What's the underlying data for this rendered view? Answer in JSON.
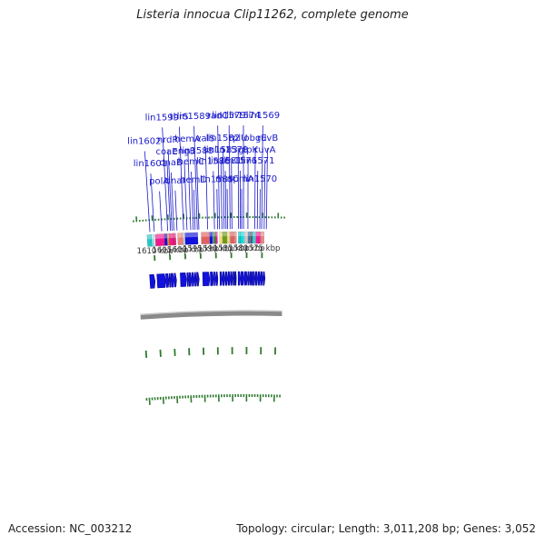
{
  "title": "Listeria innocua Clip11262, complete genome",
  "footer": {
    "accession": "Accession: NC_003212",
    "topology": "Topology: circular; Length: 3,011,208 bp; Genes: 3,052"
  },
  "colors": {
    "forward_cds": "#1212dd",
    "label": "#1a1acc",
    "tick": "#2f7a2f",
    "backbone": "#8a8a8a",
    "kbp_text": "#333333"
  },
  "scale_marks": [
    {
      "text": "1610 kbp",
      "kbp": 1610
    },
    {
      "text": "1605 kbp",
      "kbp": 1605
    },
    {
      "text": "1600 kbp",
      "kbp": 1600
    },
    {
      "text": "1595 kbp",
      "kbp": 1595
    },
    {
      "text": "1590 kbp",
      "kbp": 1590
    },
    {
      "text": "1585 kbp",
      "kbp": 1585
    },
    {
      "text": "1580 kbp",
      "kbp": 1580
    },
    {
      "text": "1575 kbp",
      "kbp": 1575
    }
  ],
  "gene_labels": [
    {
      "text": "lin1602",
      "kbp": 1611.0
    },
    {
      "text": "lin1601",
      "kbp": 1609.6
    },
    {
      "text": "polA",
      "kbp": 1607.2
    },
    {
      "text": "lin1599",
      "kbp": 1605.3
    },
    {
      "text": "coaE",
      "kbp": 1604.4
    },
    {
      "text": "nrdR",
      "kbp": 1603.9
    },
    {
      "text": "dnaB",
      "kbp": 1603.3
    },
    {
      "text": "dnaI",
      "kbp": 1602.3
    },
    {
      "text": "thrS",
      "kbp": 1600.2
    },
    {
      "text": "engB",
      "kbp": 1599.1
    },
    {
      "text": "hemA",
      "kbp": 1597.9
    },
    {
      "text": "hemC",
      "kbp": 1597.1
    },
    {
      "text": "hemD",
      "kbp": 1596.5
    },
    {
      "text": "lin1589",
      "kbp": 1595.8
    },
    {
      "text": "lin1588",
      "kbp": 1595.3
    },
    {
      "text": "valS",
      "kbp": 1592.5
    },
    {
      "text": "lin1586",
      "kbp": 1590.3
    },
    {
      "text": "lin1585",
      "kbp": 1589.3
    },
    {
      "text": "radC",
      "kbp": 1588.7
    },
    {
      "text": "lin1583",
      "kbp": 1587.9
    },
    {
      "text": "lin1582",
      "kbp": 1587.2
    },
    {
      "text": "lin1581",
      "kbp": 1586.6
    },
    {
      "text": "minC",
      "kbp": 1586.1
    },
    {
      "text": "lin1579",
      "kbp": 1585.3
    },
    {
      "text": "lin1578",
      "kbp": 1584.7
    },
    {
      "text": "rplU",
      "kbp": 1582.6
    },
    {
      "text": "lin1576",
      "kbp": 1582.0
    },
    {
      "text": "rpmA",
      "kbp": 1581.6
    },
    {
      "text": "lin1574",
      "kbp": 1581.0
    },
    {
      "text": "glpK",
      "kbp": 1579.6
    },
    {
      "text": "obgE",
      "kbp": 1577.4
    },
    {
      "text": "lin1571",
      "kbp": 1576.6
    },
    {
      "text": "lin1570",
      "kbp": 1575.8
    },
    {
      "text": "lin1569",
      "kbp": 1575.2
    },
    {
      "text": "ruvA",
      "kbp": 1574.4
    },
    {
      "text": "ruvB",
      "kbp": 1573.7
    }
  ],
  "cog_features": [
    {
      "start": 1612.0,
      "end": 1610.6,
      "color": "#20c8c8"
    },
    {
      "start": 1610.6,
      "end": 1609.8,
      "color": "#8ee8e8"
    },
    {
      "start": 1609.4,
      "end": 1606.4,
      "color": "#ee1b8f"
    },
    {
      "start": 1606.4,
      "end": 1605.6,
      "color": "#1212dd"
    },
    {
      "start": 1605.5,
      "end": 1604.9,
      "color": "#f08c1e"
    },
    {
      "start": 1604.9,
      "end": 1603.6,
      "color": "#ee1b8f"
    },
    {
      "start": 1603.6,
      "end": 1602.8,
      "color": "#e02070"
    },
    {
      "start": 1602.2,
      "end": 1600.6,
      "color": "#ee8080"
    },
    {
      "start": 1600.6,
      "end": 1600.0,
      "color": "#c8c8c8"
    },
    {
      "start": 1599.8,
      "end": 1595.7,
      "color": "#1212dd"
    },
    {
      "start": 1594.6,
      "end": 1592.0,
      "color": "#e06060"
    },
    {
      "start": 1591.9,
      "end": 1590.9,
      "color": "#1212dd"
    },
    {
      "start": 1590.7,
      "end": 1590.0,
      "color": "#2e9b2e"
    },
    {
      "start": 1590.0,
      "end": 1589.4,
      "color": "#ee1b8f"
    },
    {
      "start": 1588.7,
      "end": 1587.8,
      "color": "#f0e070"
    },
    {
      "start": 1587.7,
      "end": 1586.4,
      "color": "#6a9b1a"
    },
    {
      "start": 1586.3,
      "end": 1585.5,
      "color": "#f0e070"
    },
    {
      "start": 1585.3,
      "end": 1584.1,
      "color": "#e06060"
    },
    {
      "start": 1584.0,
      "end": 1583.3,
      "color": "#ee8080"
    },
    {
      "start": 1582.7,
      "end": 1582.0,
      "color": "#20c8c8"
    },
    {
      "start": 1582.0,
      "end": 1580.9,
      "color": "#00e0e0"
    },
    {
      "start": 1580.7,
      "end": 1579.6,
      "color": "#c8c8c8"
    },
    {
      "start": 1579.5,
      "end": 1578.8,
      "color": "#3b6ea8"
    },
    {
      "start": 1578.7,
      "end": 1578.1,
      "color": "#606060"
    },
    {
      "start": 1578.0,
      "end": 1577.3,
      "color": "#00e8e8"
    },
    {
      "start": 1577.1,
      "end": 1575.6,
      "color": "#ee1b8f"
    },
    {
      "start": 1575.5,
      "end": 1574.4,
      "color": "#ee8080"
    }
  ],
  "forward_cds": [
    {
      "start": 1612.0,
      "end": 1610.3
    },
    {
      "start": 1609.6,
      "end": 1606.8
    },
    {
      "start": 1606.7,
      "end": 1605.7
    },
    {
      "start": 1605.6,
      "end": 1605.1
    },
    {
      "start": 1605.0,
      "end": 1604.0
    },
    {
      "start": 1603.9,
      "end": 1603.2
    },
    {
      "start": 1601.9,
      "end": 1599.9
    },
    {
      "start": 1599.7,
      "end": 1599.2
    },
    {
      "start": 1599.1,
      "end": 1598.2
    },
    {
      "start": 1598.1,
      "end": 1597.3
    },
    {
      "start": 1597.2,
      "end": 1596.6
    },
    {
      "start": 1596.5,
      "end": 1595.7
    },
    {
      "start": 1594.5,
      "end": 1592.2
    },
    {
      "start": 1592.0,
      "end": 1590.9
    },
    {
      "start": 1590.8,
      "end": 1590.1
    },
    {
      "start": 1590.0,
      "end": 1589.5
    },
    {
      "start": 1588.8,
      "end": 1588.0
    },
    {
      "start": 1587.9,
      "end": 1587.1
    },
    {
      "start": 1587.0,
      "end": 1586.2
    },
    {
      "start": 1586.1,
      "end": 1585.4
    },
    {
      "start": 1585.3,
      "end": 1584.6
    },
    {
      "start": 1584.5,
      "end": 1584.2
    },
    {
      "start": 1584.1,
      "end": 1583.8
    },
    {
      "start": 1583.7,
      "end": 1583.4
    },
    {
      "start": 1582.8,
      "end": 1582.0
    },
    {
      "start": 1581.9,
      "end": 1580.8
    },
    {
      "start": 1580.7,
      "end": 1579.7
    },
    {
      "start": 1579.6,
      "end": 1579.0
    },
    {
      "start": 1578.9,
      "end": 1578.5
    },
    {
      "start": 1578.4,
      "end": 1578.0
    },
    {
      "start": 1577.9,
      "end": 1577.2
    },
    {
      "start": 1577.1,
      "end": 1576.3
    },
    {
      "start": 1576.2,
      "end": 1575.5
    },
    {
      "start": 1575.4,
      "end": 1574.6
    },
    {
      "start": 1574.5,
      "end": 1573.9
    }
  ]
}
